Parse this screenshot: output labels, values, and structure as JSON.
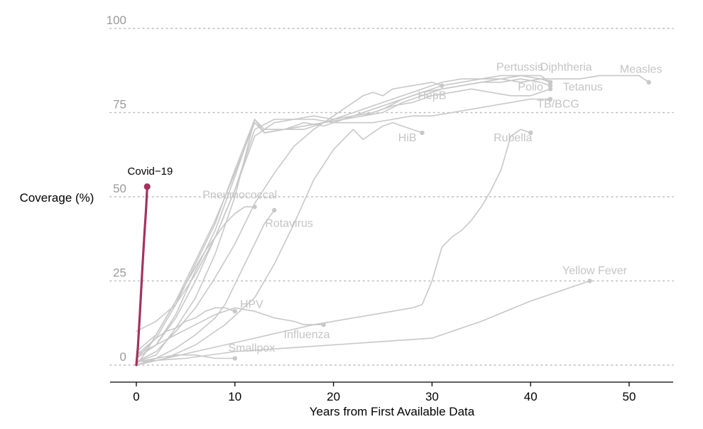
{
  "chart_data": {
    "type": "line",
    "xlabel": "Years from First Available Data",
    "ylabel": "Coverage (%)",
    "xlim": [
      0,
      55
    ],
    "ylim": [
      0,
      100
    ],
    "x_ticks": [
      0,
      10,
      20,
      30,
      40,
      50
    ],
    "y_ticks": [
      0,
      25,
      50,
      75,
      100
    ],
    "y_grid": "dotted",
    "colors": {
      "background": "#c8c8c8",
      "highlight": "#a3325e",
      "axis": "#000000",
      "grid": "#bbbbbb"
    },
    "highlight_series": {
      "name": "Covid−19",
      "x": [
        0,
        0.15,
        0.35,
        0.6,
        0.8,
        1.0,
        1.1
      ],
      "y": [
        0,
        5,
        15,
        28,
        38,
        47,
        53
      ]
    },
    "series": [
      {
        "name": "Measles",
        "x": [
          0,
          2,
          4,
          6,
          8,
          10,
          12,
          13,
          15,
          17,
          19,
          21,
          23,
          25,
          27,
          29,
          31,
          33,
          35,
          37,
          39,
          41,
          43,
          45,
          47,
          49,
          51,
          52
        ],
        "y": [
          1,
          3,
          11,
          20,
          33,
          50,
          73,
          69,
          70,
          71,
          72,
          73,
          74,
          75,
          78,
          80,
          82,
          83,
          84,
          85,
          84,
          85,
          85,
          85,
          86,
          86,
          86,
          84
        ]
      },
      {
        "name": "Pertussis",
        "x": [
          0,
          2,
          4,
          6,
          8,
          10,
          12,
          13,
          15,
          17,
          19,
          21,
          23,
          25,
          27,
          29,
          31,
          33,
          35,
          37,
          39,
          41,
          42
        ],
        "y": [
          2,
          6,
          15,
          28,
          40,
          56,
          73,
          70,
          70,
          72,
          71,
          73,
          74,
          76,
          79,
          81,
          83,
          84,
          85,
          85,
          86,
          86,
          84
        ]
      },
      {
        "name": "Diphtheria",
        "x": [
          0,
          2,
          4,
          6,
          8,
          10,
          12,
          13,
          15,
          17,
          19,
          21,
          23,
          25,
          27,
          29,
          31,
          33,
          35,
          37,
          39,
          41,
          42
        ],
        "y": [
          3,
          8,
          18,
          30,
          42,
          58,
          73,
          69,
          70,
          71,
          72,
          74,
          76,
          78,
          80,
          82,
          84,
          85,
          85,
          86,
          86,
          85,
          84
        ]
      },
      {
        "name": "Tetanus",
        "x": [
          0,
          2,
          4,
          6,
          8,
          10,
          12,
          13,
          15,
          17,
          19,
          21,
          23,
          25,
          27,
          29,
          31,
          33,
          35,
          37,
          39,
          41,
          42
        ],
        "y": [
          4,
          9,
          19,
          31,
          43,
          57,
          72,
          69,
          70,
          70,
          72,
          73,
          75,
          77,
          79,
          81,
          82,
          83,
          84,
          84,
          85,
          84,
          83
        ]
      },
      {
        "name": "Polio",
        "x": [
          0,
          2,
          4,
          6,
          8,
          10,
          12,
          14,
          16,
          18,
          20,
          22,
          24,
          26,
          28,
          30,
          32,
          34,
          36,
          38,
          40,
          42
        ],
        "y": [
          2,
          6,
          14,
          25,
          38,
          52,
          70,
          73,
          73,
          74,
          73,
          74,
          75,
          77,
          78,
          80,
          81,
          82,
          81,
          80,
          80,
          82
        ]
      },
      {
        "name": "TB/BCG",
        "x": [
          0,
          2,
          4,
          6,
          8,
          10,
          12,
          14,
          16,
          18,
          20,
          22,
          24,
          26,
          28,
          30,
          32,
          34,
          36,
          38,
          40,
          42
        ],
        "y": [
          10,
          13,
          18,
          27,
          38,
          52,
          68,
          72,
          73,
          73,
          72,
          72,
          72,
          73,
          74,
          74,
          75,
          76,
          77,
          78,
          79,
          79
        ]
      },
      {
        "name": "HepB",
        "x": [
          0,
          2,
          4,
          6,
          8,
          10,
          12,
          14,
          16,
          18,
          20,
          22,
          23,
          24,
          25,
          26,
          28,
          30,
          31
        ],
        "y": [
          1,
          4,
          10,
          17,
          26,
          36,
          48,
          57,
          65,
          70,
          74,
          78,
          80,
          81,
          80,
          82,
          83,
          84,
          83
        ]
      },
      {
        "name": "HiB",
        "x": [
          0,
          3,
          6,
          9,
          12,
          14,
          16,
          18,
          20,
          22,
          23,
          24,
          25,
          26,
          27,
          28,
          29
        ],
        "y": [
          0,
          2,
          6,
          12,
          20,
          30,
          42,
          55,
          64,
          70,
          67,
          69,
          71,
          72,
          71,
          70,
          69
        ]
      },
      {
        "name": "Rubella",
        "x": [
          0,
          3,
          6,
          9,
          12,
          15,
          18,
          20,
          22,
          24,
          26,
          28,
          29,
          30,
          31,
          32,
          33,
          34,
          35,
          36,
          37,
          38,
          39,
          40
        ],
        "y": [
          0,
          2,
          4,
          6,
          8,
          10,
          12,
          13,
          14,
          15,
          16,
          17,
          18,
          25,
          35,
          38,
          40,
          43,
          47,
          52,
          58,
          68,
          70,
          69
        ]
      },
      {
        "name": "Pneumococcal",
        "x": [
          0,
          1,
          2,
          3,
          4,
          5,
          6,
          7,
          8,
          9,
          10,
          11,
          12
        ],
        "y": [
          0,
          4,
          9,
          14,
          19,
          24,
          29,
          34,
          38,
          42,
          45,
          47,
          47
        ]
      },
      {
        "name": "Rotavirus",
        "x": [
          0,
          2,
          4,
          6,
          8,
          9,
          10,
          11,
          12,
          13,
          14
        ],
        "y": [
          0,
          2,
          5,
          9,
          14,
          18,
          24,
          30,
          36,
          42,
          46
        ]
      },
      {
        "name": "HPV",
        "x": [
          0,
          1,
          2,
          3,
          4,
          5,
          6,
          7,
          8,
          9,
          10
        ],
        "y": [
          2,
          5,
          8,
          10,
          11,
          13,
          14,
          16,
          17,
          17,
          16
        ]
      },
      {
        "name": "Influenza",
        "x": [
          0,
          2,
          4,
          6,
          8,
          10,
          12,
          14,
          16,
          17,
          18,
          19
        ],
        "y": [
          3,
          6,
          9,
          12,
          15,
          17,
          16,
          14,
          13,
          12,
          12,
          12
        ]
      },
      {
        "name": "Smallpox",
        "x": [
          0,
          2,
          4,
          6,
          8,
          10
        ],
        "y": [
          1,
          2,
          3,
          3,
          2,
          2
        ]
      },
      {
        "name": "Yellow Fever",
        "x": [
          0,
          5,
          10,
          15,
          20,
          25,
          30,
          35,
          40,
          46
        ],
        "y": [
          1,
          2,
          4,
          5,
          6,
          7,
          8,
          13,
          19,
          25
        ]
      }
    ],
    "labels": [
      {
        "text": "Measles",
        "x": 51.2,
        "y": 86.8,
        "anchor": "middle"
      },
      {
        "text": "Pertussis",
        "x": 38.9,
        "y": 87.5,
        "anchor": "middle"
      },
      {
        "text": "Diphtheria",
        "x": 43.6,
        "y": 87.5,
        "anchor": "middle"
      },
      {
        "text": "HepB",
        "x": 30.0,
        "y": 79.0,
        "anchor": "middle"
      },
      {
        "text": "Polio",
        "x": 40.0,
        "y": 81.5,
        "anchor": "middle"
      },
      {
        "text": "Tetanus",
        "x": 45.3,
        "y": 81.5,
        "anchor": "middle"
      },
      {
        "text": "TB/BCG",
        "x": 42.8,
        "y": 76.5,
        "anchor": "middle"
      },
      {
        "text": "HiB",
        "x": 27.5,
        "y": 66.5,
        "anchor": "middle"
      },
      {
        "text": "Rubella",
        "x": 38.2,
        "y": 66.5,
        "anchor": "middle"
      },
      {
        "text": "Pneumococcal",
        "x": 10.5,
        "y": 49.5,
        "anchor": "middle"
      },
      {
        "text": "Rotavirus",
        "x": 15.5,
        "y": 41.0,
        "anchor": "middle"
      },
      {
        "text": "HPV",
        "x": 11.7,
        "y": 17.0,
        "anchor": "middle"
      },
      {
        "text": "Influenza",
        "x": 17.3,
        "y": 8.0,
        "anchor": "middle"
      },
      {
        "text": "Smallpox",
        "x": 11.7,
        "y": 4.0,
        "anchor": "middle"
      },
      {
        "text": "Yellow Fever",
        "x": 46.5,
        "y": 27.0,
        "anchor": "middle"
      }
    ],
    "highlight_label": {
      "text": "Covid−19",
      "x": 1.4,
      "y": 56.5
    }
  }
}
